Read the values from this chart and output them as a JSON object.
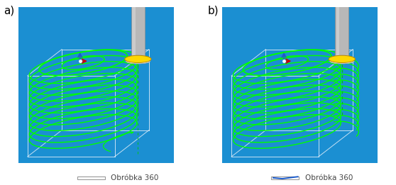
{
  "bg_color": "#ffffff",
  "panel_bg": "#1b8fd2",
  "label_a": "a)",
  "label_b": "b)",
  "caption_a": "Obróbka 360",
  "caption_b": "Obróbka 360",
  "checkbox_a_checked": false,
  "checkbox_b_checked": true,
  "fig_width": 5.58,
  "fig_height": 2.61,
  "dpi": 100,
  "box_color": "#d8eaf8",
  "spiral_color": "#00ff00",
  "gold_color": "#ffd700",
  "dashed_color": "#00cc00",
  "axis_r_color": "#cc0000",
  "axis_b_color": "#2255cc",
  "axis_w_color": "#ffffff"
}
